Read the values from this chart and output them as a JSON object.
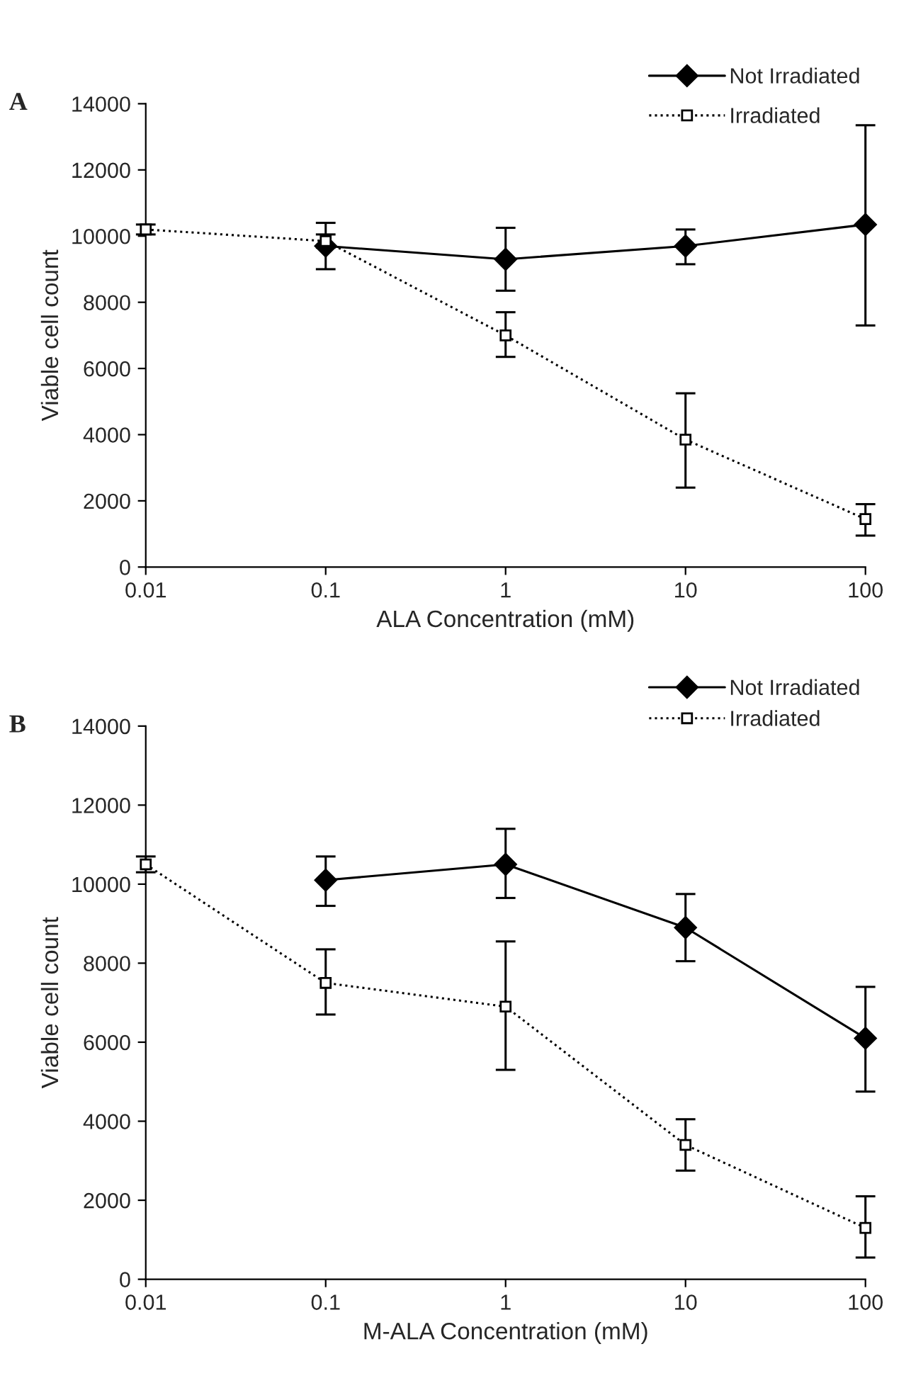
{
  "chart_data": [
    {
      "type": "line",
      "title": "A",
      "xlabel": "ALA Concentration (mM)",
      "ylabel": "Viable cell count",
      "log": "x",
      "xlim": [
        0.01,
        100
      ],
      "xticks": [
        0.01,
        0.1,
        1,
        10,
        100
      ],
      "ylim": [
        0,
        14000
      ],
      "yticks": [
        0,
        2000,
        4000,
        6000,
        8000,
        10000,
        12000,
        14000
      ],
      "grid": false,
      "legend": "top right",
      "series": [
        {
          "name": "Not Irradiated",
          "color": "#000000",
          "marker": "diamond",
          "line_style": "solid",
          "x": [
            0.1,
            1,
            10,
            100
          ],
          "values": [
            9700,
            9300,
            9700,
            10350
          ],
          "errors": [
            [
              9000,
              10400
            ],
            [
              8350,
              10250
            ],
            [
              9150,
              10200
            ],
            [
              7300,
              13350
            ]
          ]
        },
        {
          "name": "Irradiated",
          "color": "#000000",
          "marker": "square",
          "line_style": "dotted",
          "x": [
            0.01,
            0.1,
            1,
            10,
            100
          ],
          "values": [
            10200,
            9850,
            7000,
            3850,
            1450
          ],
          "errors": [
            [
              10050,
              10350
            ],
            [
              9650,
              10050
            ],
            [
              6350,
              7700
            ],
            [
              2400,
              5250
            ],
            [
              950,
              1900
            ]
          ]
        }
      ]
    },
    {
      "type": "line",
      "title": "B",
      "xlabel": "M-ALA Concentration (mM)",
      "ylabel": "Viable cell count",
      "log": "x",
      "xlim": [
        0.01,
        100
      ],
      "xticks": [
        0.01,
        0.1,
        1,
        10,
        100
      ],
      "ylim": [
        0,
        14000
      ],
      "yticks": [
        0,
        2000,
        4000,
        6000,
        8000,
        10000,
        12000,
        14000
      ],
      "grid": false,
      "legend": "top right",
      "series": [
        {
          "name": "Not Irradiated",
          "color": "#000000",
          "marker": "diamond",
          "line_style": "solid",
          "x": [
            0.1,
            1,
            10,
            100
          ],
          "values": [
            10100,
            10500,
            8900,
            6100
          ],
          "errors": [
            [
              9450,
              10700
            ],
            [
              9650,
              11400
            ],
            [
              8050,
              9750
            ],
            [
              4750,
              7400
            ]
          ]
        },
        {
          "name": "Irradiated",
          "color": "#000000",
          "marker": "square",
          "line_style": "dotted",
          "x": [
            0.01,
            0.1,
            1,
            10,
            100
          ],
          "values": [
            10500,
            7500,
            6900,
            3400,
            1300
          ],
          "errors": [
            [
              10300,
              10700
            ],
            [
              6700,
              8350
            ],
            [
              5300,
              8550
            ],
            [
              2750,
              4050
            ],
            [
              550,
              2100
            ]
          ]
        }
      ]
    }
  ]
}
